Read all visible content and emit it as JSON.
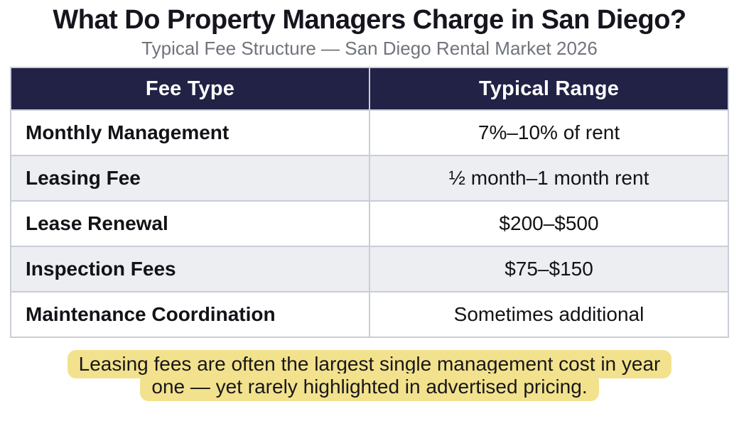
{
  "header": {
    "title": "What Do Property Managers Charge in San Diego?",
    "subtitle": "Typical Fee Structure — San Diego Rental Market 2026"
  },
  "table": {
    "columns": [
      "Fee Type",
      "Typical Range"
    ],
    "rows": [
      {
        "fee": "Monthly Management",
        "range": "7%–10% of rent"
      },
      {
        "fee": "Leasing Fee",
        "range": "½ month–1 month rent"
      },
      {
        "fee": "Lease Renewal",
        "range": "$200–$500"
      },
      {
        "fee": "Inspection Fees",
        "range": "$75–$150"
      },
      {
        "fee": "Maintenance Coordination",
        "range": "Sometimes additional"
      }
    ]
  },
  "note": {
    "text": "Leasing fees are often the largest single management cost in year one — yet rarely highlighted in advertised pricing.",
    "lines": [
      "Leasing fees are often the largest single management cost in year",
      "one — yet rarely highlighted in advertised pricing."
    ],
    "highlight_color": "#f3e28d"
  },
  "colors": {
    "header_navy": "#212246",
    "zebra_gray": "#edeef2",
    "border_gray": "#c9cdd5",
    "subtitle_gray": "#70747b",
    "note_highlight": "#f3e28d"
  },
  "chart_data": {
    "type": "table",
    "title": "What Do Property Managers Charge in San Diego?",
    "subtitle": "Typical Fee Structure — San Diego Rental Market 2026",
    "columns": [
      "Fee Type",
      "Typical Range"
    ],
    "rows": [
      [
        "Monthly Management",
        "7%–10% of rent"
      ],
      [
        "Leasing Fee",
        "½ month–1 month rent"
      ],
      [
        "Lease Renewal",
        "$200–$500"
      ],
      [
        "Inspection Fees",
        "$75–$150"
      ],
      [
        "Maintenance Coordination",
        "Sometimes additional"
      ]
    ],
    "annotation": "Leasing fees are often the largest single management cost in year one — yet rarely highlighted in advertised pricing."
  }
}
